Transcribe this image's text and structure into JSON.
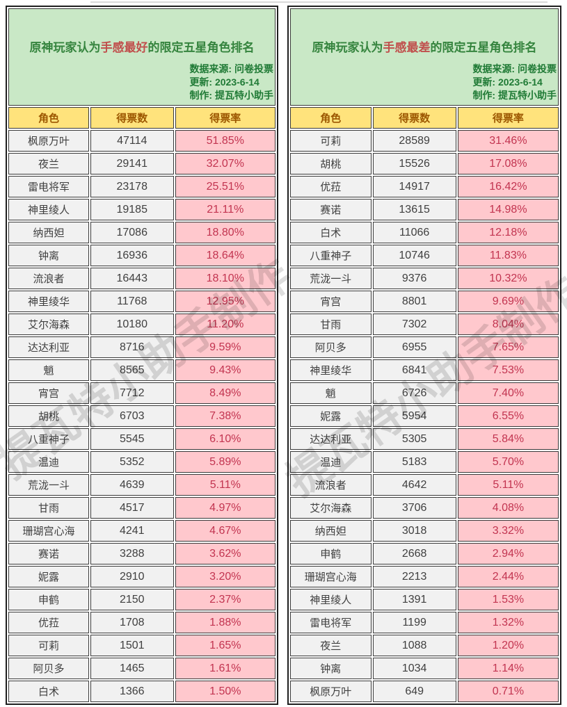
{
  "watermark": {
    "text": "提瓦特小助手制作"
  },
  "colors": {
    "banner_green_bg": "#c9e8c6",
    "title_green": "#35843e",
    "title_highlight_red": "#c0504d",
    "meta_green": "#1f7a35",
    "header_yellow_bg": "#ffe37c",
    "header_text_brown": "#9c5700",
    "cell_gray_bg": "#f1f1f1",
    "cell_text_dark": "#3f3f3f",
    "rate_pink_bg": "#ffc8cd",
    "rate_text_red": "#c23450",
    "border_dark": "#1f1f1f"
  },
  "chart_data": [
    {
      "type": "table",
      "title_prefix": "原神玩家认为",
      "title_highlight": "手感最好",
      "title_suffix": "的限定五星角色排名",
      "meta": [
        "数据来源: 问卷投票",
        "更新: 2023-6-14",
        "制作: 提瓦特小助手"
      ],
      "columns": [
        "角色",
        "得票数",
        "得票率"
      ],
      "rows": [
        [
          "枫原万叶",
          47114,
          "51.85%"
        ],
        [
          "夜兰",
          29141,
          "32.07%"
        ],
        [
          "雷电将军",
          23178,
          "25.51%"
        ],
        [
          "神里绫人",
          19185,
          "21.11%"
        ],
        [
          "纳西妲",
          17086,
          "18.80%"
        ],
        [
          "钟离",
          16936,
          "18.64%"
        ],
        [
          "流浪者",
          16443,
          "18.10%"
        ],
        [
          "神里绫华",
          11768,
          "12.95%"
        ],
        [
          "艾尔海森",
          10180,
          "11.20%"
        ],
        [
          "达达利亚",
          8716,
          "9.59%"
        ],
        [
          "魈",
          8565,
          "9.43%"
        ],
        [
          "宵宫",
          7712,
          "8.49%"
        ],
        [
          "胡桃",
          6703,
          "7.38%"
        ],
        [
          "八重神子",
          5545,
          "6.10%"
        ],
        [
          "温迪",
          5352,
          "5.89%"
        ],
        [
          "荒泷一斗",
          4639,
          "5.11%"
        ],
        [
          "甘雨",
          4517,
          "4.97%"
        ],
        [
          "珊瑚宫心海",
          4241,
          "4.67%"
        ],
        [
          "赛诺",
          3288,
          "3.62%"
        ],
        [
          "妮露",
          2910,
          "3.20%"
        ],
        [
          "申鹤",
          2150,
          "2.37%"
        ],
        [
          "优菈",
          1708,
          "1.88%"
        ],
        [
          "可莉",
          1501,
          "1.65%"
        ],
        [
          "阿贝多",
          1465,
          "1.61%"
        ],
        [
          "白术",
          1366,
          "1.50%"
        ]
      ]
    },
    {
      "type": "table",
      "title_prefix": "原神玩家认为",
      "title_highlight": "手感最差",
      "title_suffix": "的限定五星角色排名",
      "meta": [
        "数据来源: 问卷投票",
        "更新: 2023-6-14",
        "制作: 提瓦特小助手"
      ],
      "columns": [
        "角色",
        "得票数",
        "得票率"
      ],
      "rows": [
        [
          "可莉",
          28589,
          "31.46%"
        ],
        [
          "胡桃",
          15526,
          "17.08%"
        ],
        [
          "优菈",
          14917,
          "16.42%"
        ],
        [
          "赛诺",
          13615,
          "14.98%"
        ],
        [
          "白术",
          11066,
          "12.18%"
        ],
        [
          "八重神子",
          10746,
          "11.83%"
        ],
        [
          "荒泷一斗",
          9376,
          "10.32%"
        ],
        [
          "宵宫",
          8801,
          "9.69%"
        ],
        [
          "甘雨",
          7302,
          "8.04%"
        ],
        [
          "阿贝多",
          6955,
          "7.65%"
        ],
        [
          "神里绫华",
          6841,
          "7.53%"
        ],
        [
          "魈",
          6726,
          "7.40%"
        ],
        [
          "妮露",
          5954,
          "6.55%"
        ],
        [
          "达达利亚",
          5305,
          "5.84%"
        ],
        [
          "温迪",
          5183,
          "5.70%"
        ],
        [
          "流浪者",
          4642,
          "5.11%"
        ],
        [
          "艾尔海森",
          3706,
          "4.08%"
        ],
        [
          "纳西妲",
          3018,
          "3.32%"
        ],
        [
          "申鹤",
          2668,
          "2.94%"
        ],
        [
          "珊瑚宫心海",
          2213,
          "2.44%"
        ],
        [
          "神里绫人",
          1391,
          "1.53%"
        ],
        [
          "雷电将军",
          1199,
          "1.32%"
        ],
        [
          "夜兰",
          1088,
          "1.20%"
        ],
        [
          "钟离",
          1034,
          "1.14%"
        ],
        [
          "枫原万叶",
          649,
          "0.71%"
        ]
      ]
    }
  ]
}
